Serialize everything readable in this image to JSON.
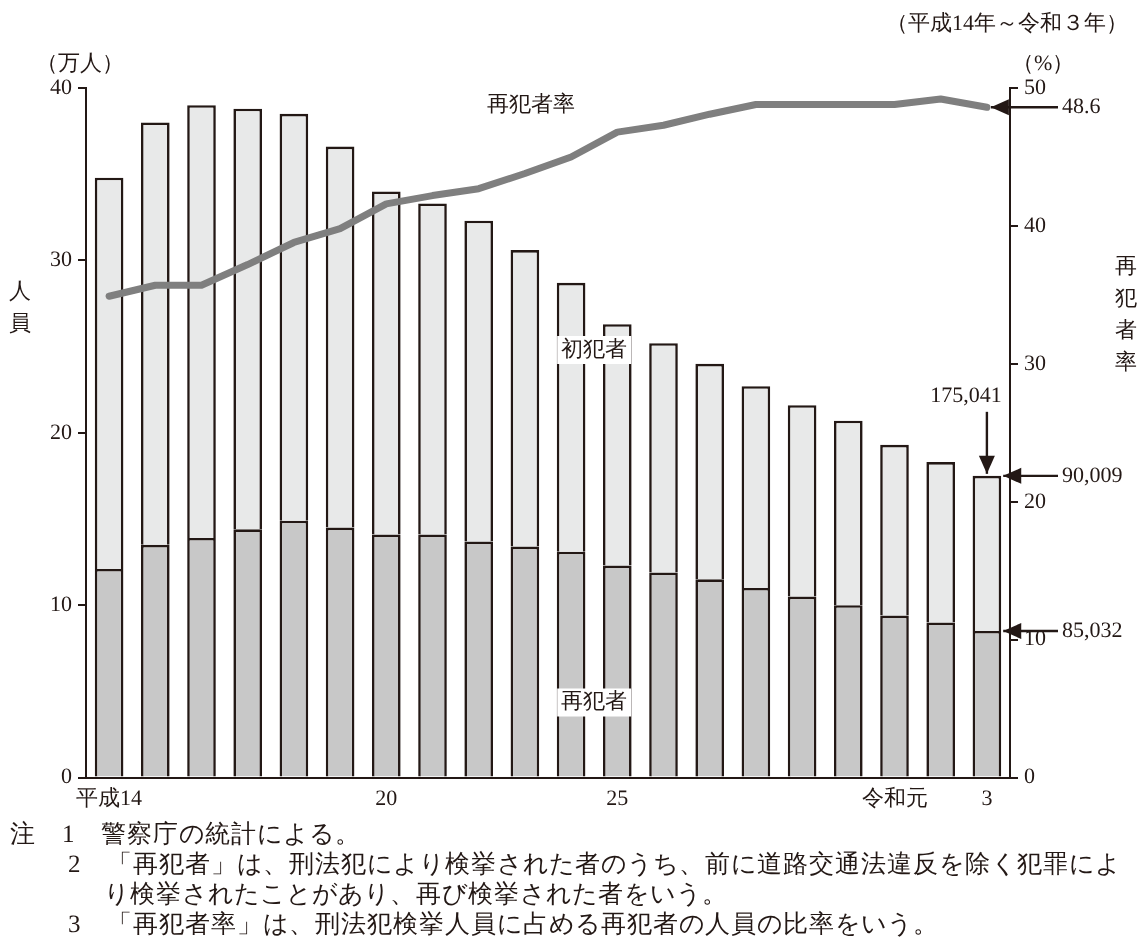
{
  "chart_data": {
    "type": "bar",
    "stacked": true,
    "ylabel": "人員",
    "y2label": "再犯者率",
    "categories": [
      "平成14",
      null,
      null,
      null,
      null,
      null,
      "20",
      null,
      null,
      null,
      null,
      "25",
      null,
      null,
      null,
      null,
      null,
      "令和元",
      null,
      "3"
    ],
    "series": [
      {
        "name": "再犯者",
        "color": "#c8c8c8",
        "values": [
          12.1,
          13.5,
          13.9,
          14.4,
          14.9,
          14.5,
          14.1,
          14.1,
          13.7,
          13.4,
          13.1,
          12.3,
          11.9,
          11.5,
          11.0,
          10.5,
          10.0,
          9.4,
          9.0,
          8.5032
        ]
      },
      {
        "name": "初犯者",
        "color": "#e8e9e9",
        "values": [
          22.7,
          24.5,
          25.1,
          24.4,
          23.6,
          22.1,
          19.9,
          19.2,
          18.6,
          17.2,
          15.6,
          14.0,
          13.3,
          12.5,
          11.7,
          11.1,
          10.7,
          9.9,
          9.3,
          9.0009
        ]
      },
      {
        "name": "再犯者率",
        "type": "line",
        "axis": "y2",
        "color": "#7f7f7f",
        "values": [
          34.9,
          35.7,
          35.7,
          37.2,
          38.8,
          39.8,
          41.6,
          42.2,
          42.7,
          43.8,
          45.0,
          46.8,
          47.3,
          48.1,
          48.8,
          48.8,
          48.8,
          48.8,
          49.2,
          48.6
        ],
        "value_labels": [
          null,
          null,
          null,
          null,
          null,
          null,
          null,
          null,
          null,
          null,
          null,
          null,
          null,
          null,
          null,
          null,
          null,
          null,
          null,
          "48.6"
        ]
      }
    ],
    "ylim": [
      0,
      40
    ],
    "yticks": [
      0,
      10,
      20,
      30,
      40
    ],
    "y2lim": [
      0,
      50
    ],
    "y2ticks": [
      0,
      10,
      20,
      30,
      40,
      50
    ],
    "legend": false,
    "marker": "none",
    "annotations": [
      "（平成14年～令和３年）",
      "（万人）",
      "（%）",
      {
        "text": "175,041",
        "x": "3",
        "y": 17.5041
      },
      {
        "text": "90,009",
        "x": "3",
        "y": 17.5041
      },
      {
        "text": "85,032",
        "x": "3",
        "y": 8.5032
      },
      "注　1　警察庁の統計による。",
      "2　「再犯者」は、刑法犯により検挙された者のうち、前に道路交通法違反を除く犯罪により検挙されたことがあり、再び検挙された者をいう。",
      "3　「再犯者率」は、刑法犯検挙人員に占める再犯者の人員の比率をいう。"
    ]
  }
}
